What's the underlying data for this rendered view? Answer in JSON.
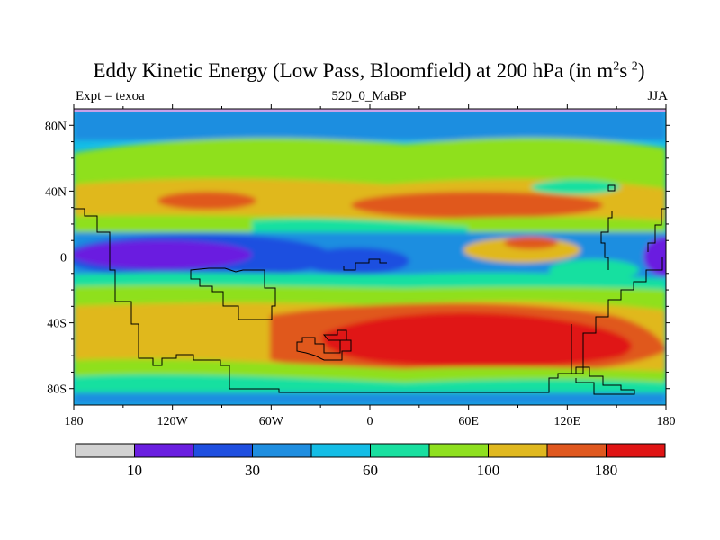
{
  "title": {
    "main": "Eddy Kinetic Energy (Low Pass, Bloomfield) at 200 hPa (in m",
    "sup1": "2",
    "mid": "s",
    "sup2": "-2",
    "end": ")"
  },
  "subtitles": {
    "left": "Expt = texoa",
    "center": "520_0_MaBP",
    "right": "JJA"
  },
  "axes": {
    "lat_ticks": [
      {
        "label": "80N",
        "value": 80
      },
      {
        "label": "40N",
        "value": 40
      },
      {
        "label": "0",
        "value": 0
      },
      {
        "label": "40S",
        "value": -40
      },
      {
        "label": "80S",
        "value": -80
      }
    ],
    "lon_ticks": [
      {
        "label": "180",
        "value": -180
      },
      {
        "label": "120W",
        "value": -120
      },
      {
        "label": "60W",
        "value": -60
      },
      {
        "label": "0",
        "value": 0
      },
      {
        "label": "60E",
        "value": 60
      },
      {
        "label": "120E",
        "value": 120
      },
      {
        "label": "180",
        "value": 180
      }
    ]
  },
  "colorbar": {
    "colors": [
      "#d2d2d2",
      "#6a1fe0",
      "#1f4fe0",
      "#1f8ee0",
      "#14bde6",
      "#19e0a0",
      "#8fe01f",
      "#e0b81f",
      "#e0581f",
      "#e01414"
    ],
    "labels": [
      {
        "text": "10",
        "boundary": 1
      },
      {
        "text": "30",
        "boundary": 3
      },
      {
        "text": "60",
        "boundary": 5
      },
      {
        "text": "100",
        "boundary": 7
      },
      {
        "text": "180",
        "boundary": 9
      }
    ]
  },
  "map_colors": {
    "ocean_base": "#14bde6",
    "light_blue": "#1f8ee0",
    "mid_blue": "#1f4fe0",
    "purple": "#6a1fe0",
    "teal": "#19e0a0",
    "green": "#8fe01f",
    "yellow": "#e0b81f",
    "orange": "#e0581f",
    "red": "#e01414",
    "coast": "#000000",
    "top_strip": "#c8a0e8"
  }
}
